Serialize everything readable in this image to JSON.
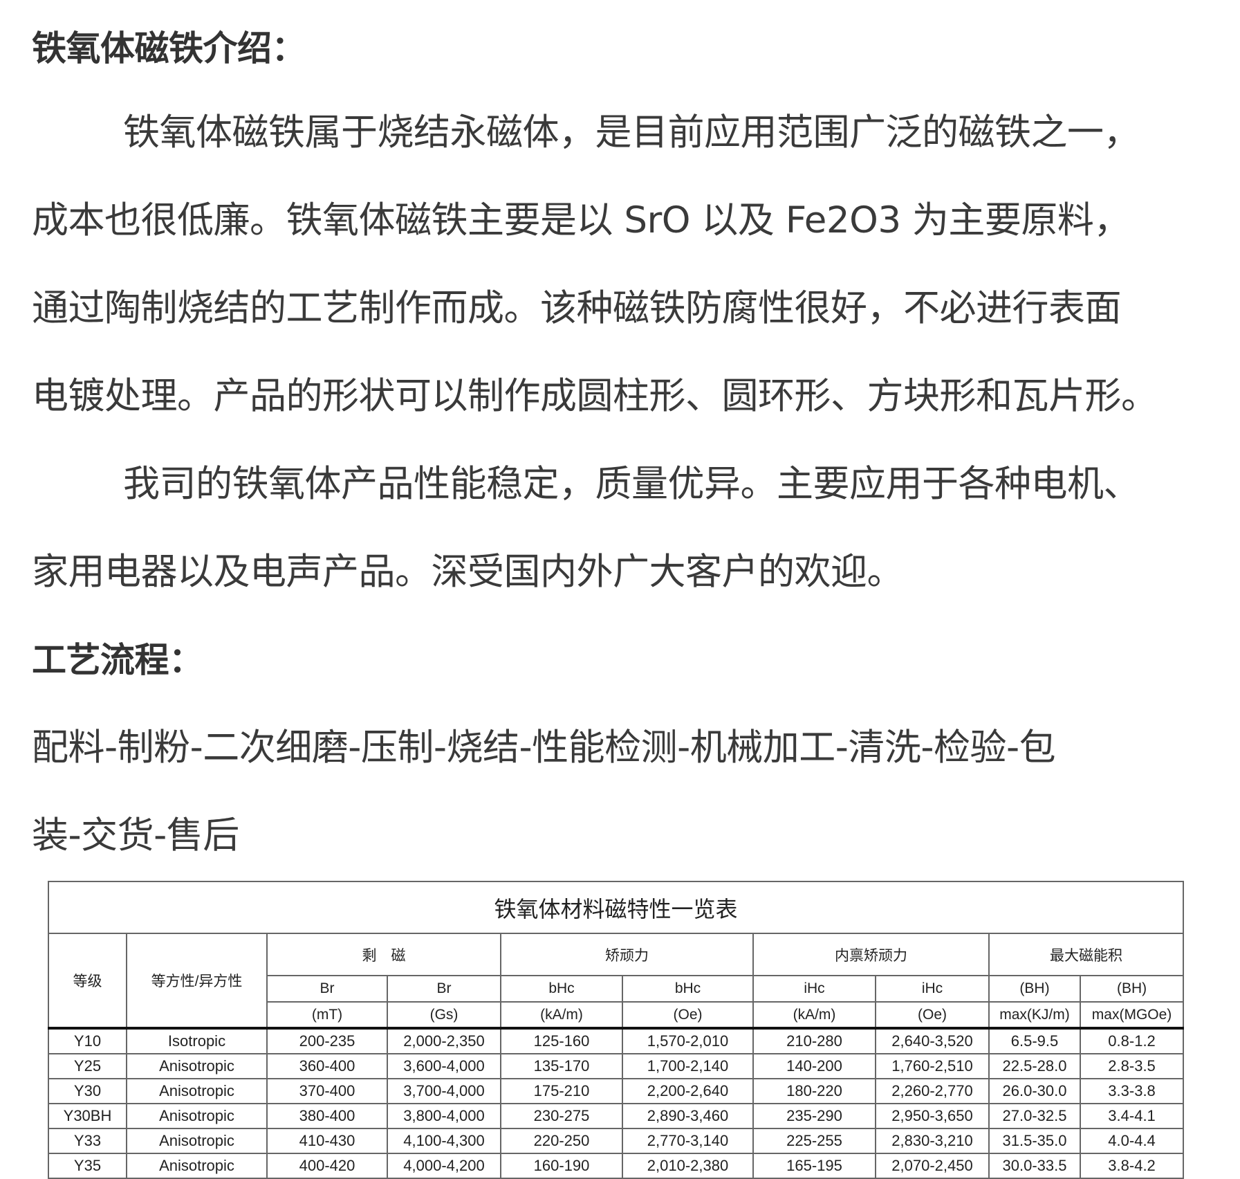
{
  "intro": {
    "heading": "铁氧体磁铁介绍：",
    "para1": [
      "铁氧体磁铁属于烧结永磁体，是目前应用范围广泛的磁铁之一，",
      "成本也很低廉。铁氧体磁铁主要是以 SrO 以及 Fe2O3 为主要原料，",
      "通过陶制烧结的工艺制作而成。该种磁铁防腐性很好，不必进行表面",
      "电镀处理。产品的形状可以制作成圆柱形、圆环形、方块形和瓦片形。"
    ],
    "para2": [
      "我司的铁氧体产品性能稳定，质量优异。主要应用于各种电机、",
      "家用电器以及电声产品。深受国内外广大客户的欢迎。"
    ]
  },
  "process": {
    "heading": "工艺流程：",
    "lines": [
      "配料-制粉-二次细磨-压制-烧结-性能检测-机械加工-清洗-检验-包",
      "装-交货-售后"
    ]
  },
  "table": {
    "title": "铁氧体材料磁特性一览表",
    "grade": "等级",
    "iso": "等方性/异方性",
    "groups": [
      "剩　磁",
      "矫顽力",
      "内禀矫顽力",
      "最大磁能积"
    ],
    "sub1": [
      "Br",
      "Br",
      "bHc",
      "bHc",
      "iHc",
      "iHc",
      "(BH)",
      "(BH)"
    ],
    "sub2": [
      "(mT)",
      "(Gs)",
      "(kA/m)",
      "(Oe)",
      "(kA/m)",
      "(Oe)",
      "max(KJ/m)",
      "max(MGOe)"
    ],
    "rows": [
      [
        "Y10",
        "Isotropic",
        "200-235",
        "2,000-2,350",
        "125-160",
        "1,570-2,010",
        "210-280",
        "2,640-3,520",
        "6.5-9.5",
        "0.8-1.2"
      ],
      [
        "Y25",
        "Anisotropic",
        "360-400",
        "3,600-4,000",
        "135-170",
        "1,700-2,140",
        "140-200",
        "1,760-2,510",
        "22.5-28.0",
        "2.8-3.5"
      ],
      [
        "Y30",
        "Anisotropic",
        "370-400",
        "3,700-4,000",
        "175-210",
        "2,200-2,640",
        "180-220",
        "2,260-2,770",
        "26.0-30.0",
        "3.3-3.8"
      ],
      [
        "Y30BH",
        "Anisotropic",
        "380-400",
        "3,800-4,000",
        "230-275",
        "2,890-3,460",
        "235-290",
        "2,950-3,650",
        "27.0-32.5",
        "3.4-4.1"
      ],
      [
        "Y33",
        "Anisotropic",
        "410-430",
        "4,100-4,300",
        "220-250",
        "2,770-3,140",
        "225-255",
        "2,830-3,210",
        "31.5-35.0",
        "4.0-4.4"
      ],
      [
        "Y35",
        "Anisotropic",
        "400-420",
        "4,000-4,200",
        "160-190",
        "2,010-2,380",
        "165-195",
        "2,070-2,450",
        "30.0-33.5",
        "3.8-4.2"
      ]
    ]
  }
}
